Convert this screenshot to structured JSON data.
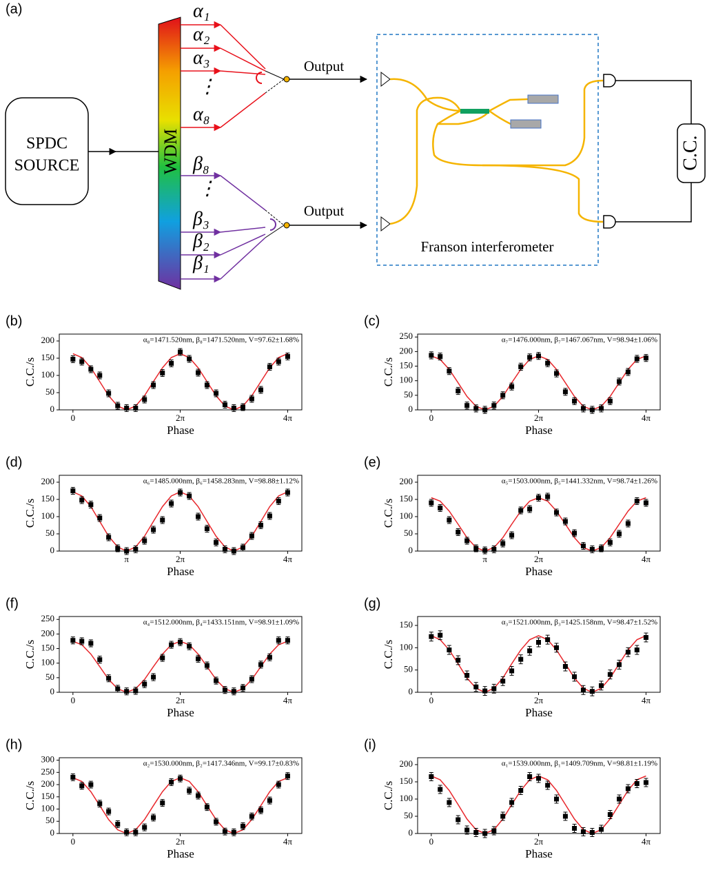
{
  "diagram": {
    "label": "(a)",
    "source": [
      "SPDC",
      "SOURCE"
    ],
    "wdm": "WDM",
    "alpha": [
      "α₁",
      "α₂",
      "α₃",
      "⋮",
      "α₈"
    ],
    "beta": [
      "β₈",
      "⋮",
      "β₃",
      "β₂",
      "β₁"
    ],
    "outputs": [
      "Output",
      "Output"
    ],
    "interferometer": "Franson interferometer",
    "counter": "C.C."
  },
  "chart_data": [
    {
      "type": "scatter",
      "panel": "(b)",
      "title": "α₈=1471.520nm, β₈=1471.520nm, V=97.62±1.68%",
      "ylabel": "C.C./s",
      "xlabel": "Phase",
      "x": [
        0,
        0.52,
        1.05,
        1.57,
        2.09,
        2.62,
        3.14,
        3.67,
        4.19,
        4.71,
        5.24,
        5.76,
        6.28,
        6.81,
        7.33,
        7.85,
        8.38,
        8.9,
        9.42,
        9.95,
        10.47,
        11,
        11.52,
        12.04,
        12.57
      ],
      "xlim": [
        -0.8,
        13.4
      ],
      "xticks": [
        0,
        {
          "value": 6.28,
          "label": "2π"
        },
        {
          "value": 12.57,
          "label": "4π"
        }
      ],
      "ylim": [
        0,
        220
      ],
      "yticks": [
        0,
        50,
        100,
        150,
        200
      ],
      "series": [
        {
          "color": "#000000",
          "error": 10,
          "values": [
            147,
            140,
            118,
            100,
            48,
            12,
            5,
            5,
            30,
            72,
            107,
            135,
            168,
            148,
            108,
            72,
            48,
            15,
            5,
            8,
            32,
            58,
            125,
            140,
            155
          ]
        },
        {
          "color": "#e8262b",
          "values": [
            163,
            152,
            122,
            82,
            41,
            11,
            0,
            11,
            41,
            82,
            122,
            152,
            163,
            152,
            122,
            82,
            41,
            11,
            0,
            11,
            41,
            82,
            122,
            152,
            163
          ]
        }
      ]
    },
    {
      "type": "scatter",
      "panel": "(c)",
      "title": "α₇=1476.000nm, β₇=1467.067nm, V=98.94±1.06%",
      "ylabel": "C.C./s",
      "xlabel": "Phase",
      "x": [
        0,
        0.52,
        1.05,
        1.57,
        2.09,
        2.62,
        3.14,
        3.67,
        4.19,
        4.71,
        5.24,
        5.76,
        6.28,
        6.81,
        7.33,
        7.85,
        8.38,
        8.9,
        9.42,
        9.95,
        10.47,
        11,
        11.52,
        12.04,
        12.57
      ],
      "xlim": [
        -0.8,
        13.4
      ],
      "xticks": [
        0,
        {
          "value": 6.28,
          "label": "2π"
        },
        {
          "value": 12.57,
          "label": "4π"
        }
      ],
      "ylim": [
        0,
        260
      ],
      "yticks": [
        0,
        50,
        100,
        150,
        200,
        250
      ],
      "series": [
        {
          "color": "#000000",
          "error": 12,
          "values": [
            187,
            183,
            133,
            65,
            15,
            5,
            0,
            15,
            50,
            80,
            148,
            180,
            185,
            160,
            125,
            62,
            30,
            5,
            0,
            5,
            30,
            97,
            130,
            175,
            178
          ]
        },
        {
          "color": "#e8262b",
          "values": [
            185,
            173,
            139,
            93,
            46,
            12,
            0,
            12,
            46,
            93,
            139,
            173,
            185,
            173,
            139,
            93,
            46,
            12,
            0,
            12,
            46,
            93,
            139,
            173,
            185
          ]
        }
      ]
    },
    {
      "type": "scatter",
      "panel": "(d)",
      "title": "α₆=1485.000nm, β₆=1458.283nm, V=98.88±1.12%",
      "ylabel": "C.C./s",
      "xlabel": "Phase",
      "x": [
        0,
        0.52,
        1.05,
        1.57,
        2.09,
        2.62,
        3.14,
        3.67,
        4.19,
        4.71,
        5.24,
        5.76,
        6.28,
        6.81,
        7.33,
        7.85,
        8.38,
        8.9,
        9.42,
        9.95,
        10.47,
        11,
        11.52,
        12.04,
        12.57
      ],
      "xlim": [
        -0.8,
        13.4
      ],
      "xticks": [
        {
          "value": 3.14,
          "label": "π"
        },
        {
          "value": 6.28,
          "label": "2π"
        },
        {
          "value": 12.57,
          "label": "4π"
        }
      ],
      "ylim": [
        0,
        220
      ],
      "yticks": [
        0,
        50,
        100,
        150,
        200
      ],
      "series": [
        {
          "color": "#000000",
          "error": 10,
          "values": [
            175,
            148,
            135,
            96,
            40,
            8,
            0,
            5,
            30,
            62,
            90,
            138,
            170,
            160,
            100,
            65,
            25,
            5,
            0,
            10,
            44,
            75,
            102,
            145,
            170
          ]
        },
        {
          "color": "#e8262b",
          "values": [
            172,
            160,
            129,
            86,
            43,
            12,
            0,
            12,
            43,
            86,
            129,
            160,
            172,
            160,
            129,
            86,
            43,
            12,
            0,
            12,
            43,
            86,
            129,
            160,
            172
          ]
        }
      ]
    },
    {
      "type": "scatter",
      "panel": "(e)",
      "title": "α₅=1503.000nm, β₅=1441.332nm, V=98.74±1.26%",
      "ylabel": "C.C./s",
      "xlabel": "Phase",
      "x": [
        0,
        0.52,
        1.05,
        1.57,
        2.09,
        2.62,
        3.14,
        3.67,
        4.19,
        4.71,
        5.24,
        5.76,
        6.28,
        6.81,
        7.33,
        7.85,
        8.38,
        8.9,
        9.42,
        9.95,
        10.47,
        11,
        11.52,
        12.04,
        12.57
      ],
      "xlim": [
        -0.8,
        13.4
      ],
      "xticks": [
        {
          "value": 3.14,
          "label": "π"
        },
        {
          "value": 6.28,
          "label": "2π"
        },
        {
          "value": 12.57,
          "label": "4π"
        }
      ],
      "ylim": [
        0,
        220
      ],
      "yticks": [
        0,
        50,
        100,
        150,
        200
      ],
      "series": [
        {
          "color": "#000000",
          "error": 10,
          "values": [
            140,
            125,
            90,
            55,
            30,
            8,
            2,
            5,
            22,
            46,
            118,
            122,
            155,
            158,
            112,
            86,
            52,
            15,
            5,
            8,
            25,
            50,
            80,
            145,
            140
          ]
        },
        {
          "color": "#e8262b",
          "values": [
            155,
            145,
            116,
            78,
            39,
            10,
            0,
            10,
            39,
            78,
            116,
            145,
            155,
            145,
            116,
            78,
            39,
            10,
            0,
            10,
            39,
            78,
            116,
            145,
            155
          ]
        }
      ]
    },
    {
      "type": "scatter",
      "panel": "(f)",
      "title": "α₄=1512.000nm, β₄=1433.151nm, V=98.91±1.09%",
      "ylabel": "C.C./s",
      "xlabel": "Phase",
      "x": [
        0,
        0.52,
        1.05,
        1.57,
        2.09,
        2.62,
        3.14,
        3.67,
        4.19,
        4.71,
        5.24,
        5.76,
        6.28,
        6.81,
        7.33,
        7.85,
        8.38,
        8.9,
        9.42,
        9.95,
        10.47,
        11,
        11.52,
        12.04,
        12.57
      ],
      "xlim": [
        -0.8,
        13.4
      ],
      "xticks": [
        0,
        {
          "value": 6.28,
          "label": "2π"
        },
        {
          "value": 12.57,
          "label": "4π"
        }
      ],
      "ylim": [
        0,
        260
      ],
      "yticks": [
        0,
        50,
        100,
        150,
        200,
        250
      ],
      "series": [
        {
          "color": "#000000",
          "error": 12,
          "values": [
            178,
            175,
            168,
            112,
            48,
            12,
            3,
            5,
            28,
            52,
            118,
            163,
            172,
            158,
            115,
            92,
            40,
            8,
            3,
            15,
            45,
            95,
            120,
            178,
            178
          ]
        },
        {
          "color": "#e8262b",
          "values": [
            175,
            163,
            131,
            88,
            44,
            12,
            0,
            12,
            44,
            88,
            131,
            163,
            175,
            163,
            131,
            88,
            44,
            12,
            0,
            12,
            44,
            88,
            131,
            163,
            175
          ]
        }
      ]
    },
    {
      "type": "scatter",
      "panel": "(g)",
      "title": "α₃=1521.000nm, β₃=1425.158nm, V=98.47±1.52%",
      "ylabel": "C.C./s",
      "xlabel": "Phase",
      "x": [
        0,
        0.52,
        1.05,
        1.57,
        2.09,
        2.62,
        3.14,
        3.67,
        4.19,
        4.71,
        5.24,
        5.76,
        6.28,
        6.81,
        7.33,
        7.85,
        8.38,
        8.9,
        9.42,
        9.95,
        10.47,
        11,
        11.52,
        12.04,
        12.57
      ],
      "xlim": [
        -0.8,
        13.4
      ],
      "xticks": [
        0,
        {
          "value": 6.28,
          "label": "2π"
        },
        {
          "value": 12.57,
          "label": "4π"
        }
      ],
      "ylim": [
        0,
        170
      ],
      "yticks": [
        0,
        50,
        100,
        150
      ],
      "series": [
        {
          "color": "#000000",
          "error": 10,
          "values": [
            125,
            128,
            95,
            72,
            38,
            12,
            3,
            8,
            25,
            48,
            74,
            93,
            112,
            118,
            100,
            58,
            35,
            5,
            2,
            15,
            40,
            62,
            90,
            95,
            123
          ]
        },
        {
          "color": "#e8262b",
          "values": [
            127,
            118,
            95,
            64,
            32,
            9,
            0,
            9,
            32,
            64,
            95,
            118,
            127,
            118,
            95,
            64,
            32,
            9,
            0,
            9,
            32,
            64,
            95,
            118,
            127
          ]
        }
      ]
    },
    {
      "type": "scatter",
      "panel": "(h)",
      "title": "α₂=1530.000nm, β₂=1417.346nm, V=99.17±0.83%",
      "ylabel": "C.C./s",
      "xlabel": "Phase",
      "x": [
        0,
        0.52,
        1.05,
        1.57,
        2.09,
        2.62,
        3.14,
        3.67,
        4.19,
        4.71,
        5.24,
        5.76,
        6.28,
        6.81,
        7.33,
        7.85,
        8.38,
        8.9,
        9.42,
        9.95,
        10.47,
        11,
        11.52,
        12.04,
        12.57
      ],
      "xlim": [
        -0.8,
        13.4
      ],
      "xticks": [
        0,
        {
          "value": 6.28,
          "label": "2π"
        },
        {
          "value": 12.57,
          "label": "4π"
        }
      ],
      "ylim": [
        0,
        310
      ],
      "yticks": [
        0,
        50,
        100,
        150,
        200,
        250,
        300
      ],
      "series": [
        {
          "color": "#000000",
          "error": 14,
          "values": [
            230,
            195,
            200,
            122,
            90,
            38,
            5,
            5,
            25,
            65,
            125,
            210,
            225,
            175,
            155,
            108,
            48,
            8,
            5,
            30,
            70,
            95,
            135,
            200,
            235
          ]
        },
        {
          "color": "#e8262b",
          "values": [
            228,
            213,
            171,
            114,
            57,
            15,
            0,
            15,
            57,
            114,
            171,
            213,
            228,
            213,
            171,
            114,
            57,
            15,
            0,
            15,
            57,
            114,
            171,
            213,
            228
          ]
        }
      ]
    },
    {
      "type": "scatter",
      "panel": "(i)",
      "title": "α₁=1539.000nm, β₁=1409.709nm, V=98.81±1.19%",
      "ylabel": "C.C./s",
      "xlabel": "Phase",
      "x": [
        0,
        0.52,
        1.05,
        1.57,
        2.09,
        2.62,
        3.14,
        3.67,
        4.19,
        4.71,
        5.24,
        5.76,
        6.28,
        6.81,
        7.33,
        7.85,
        8.38,
        8.9,
        9.42,
        9.95,
        10.47,
        11,
        11.52,
        12.04,
        12.57
      ],
      "xlim": [
        -0.8,
        13.4
      ],
      "xticks": [
        0,
        {
          "value": 6.28,
          "label": "2π"
        },
        {
          "value": 12.57,
          "label": "4π"
        }
      ],
      "ylim": [
        0,
        220
      ],
      "yticks": [
        0,
        50,
        100,
        150,
        200
      ],
      "series": [
        {
          "color": "#000000",
          "error": 12,
          "values": [
            165,
            128,
            90,
            40,
            10,
            3,
            0,
            8,
            50,
            90,
            125,
            165,
            160,
            140,
            100,
            50,
            15,
            5,
            3,
            12,
            55,
            100,
            130,
            145,
            148
          ]
        },
        {
          "color": "#e8262b",
          "values": [
            167,
            156,
            125,
            84,
            42,
            11,
            0,
            11,
            42,
            84,
            125,
            156,
            167,
            156,
            125,
            84,
            42,
            11,
            0,
            11,
            42,
            84,
            125,
            156,
            167
          ]
        }
      ]
    }
  ]
}
